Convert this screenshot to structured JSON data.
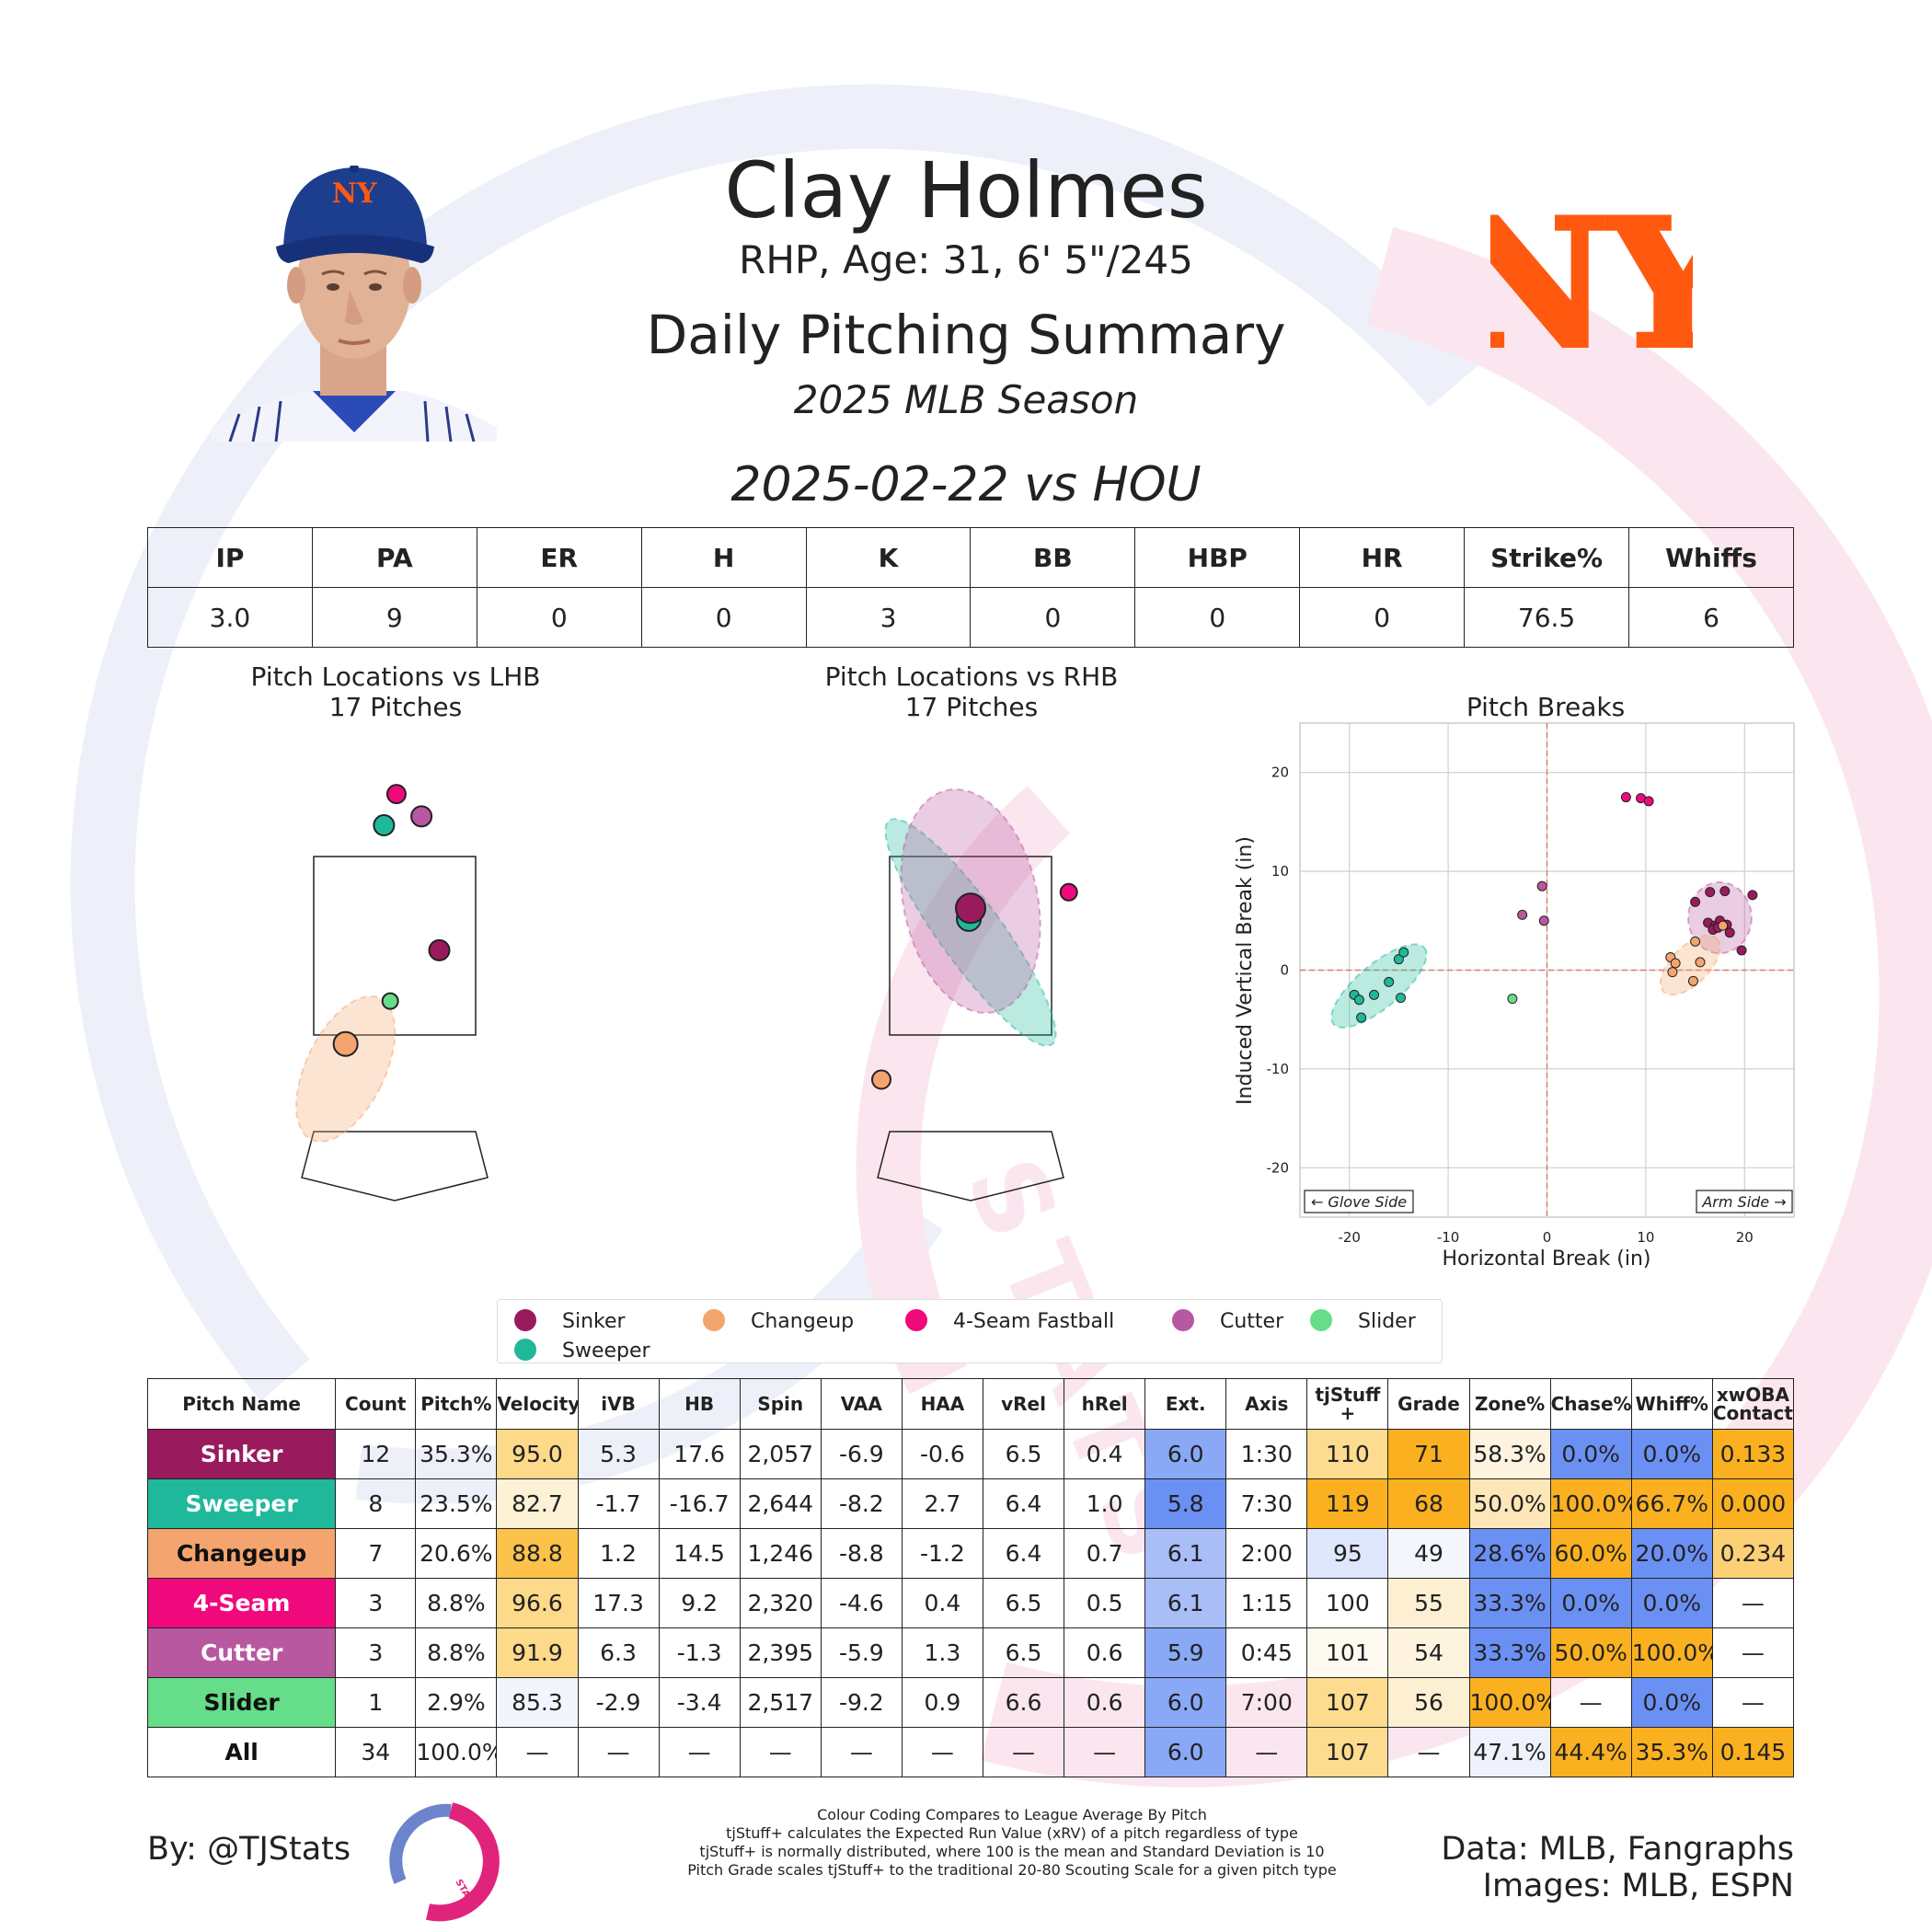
{
  "header": {
    "name": "Clay Holmes",
    "bio": "RHP, Age: 31, 6' 5\"/245",
    "title": "Daily Pitching Summary",
    "season": "2025 MLB Season",
    "game": "2025-02-22 vs HOU",
    "cap_logo_text": "NY",
    "team_logo_text": "NY",
    "watermark_text": "STATS"
  },
  "colors": {
    "Sinker": "#9a1a5e",
    "Sweeper": "#1fb89a",
    "Changeup": "#f4a46e",
    "4-Seam Fastball": "#f0097c",
    "Cutter": "#b858a0",
    "Slider": "#66dd88",
    "team_orange": "#ff5910",
    "team_blue": "#1d3d8f"
  },
  "stat_table": {
    "headers": [
      "IP",
      "PA",
      "ER",
      "H",
      "K",
      "BB",
      "HBP",
      "HR",
      "Strike%",
      "Whiffs"
    ],
    "values": [
      "3.0",
      "9",
      "0",
      "0",
      "3",
      "0",
      "0",
      "0",
      "76.5",
      "6"
    ]
  },
  "location_panels": {
    "lhb": {
      "title": "Pitch Locations vs LHB",
      "subtitle": "17 Pitches"
    },
    "rhb": {
      "title": "Pitch Locations vs RHB",
      "subtitle": "17 Pitches"
    }
  },
  "legend": [
    "Sinker",
    "Changeup",
    "4-Seam Fastball",
    "Cutter",
    "Slider",
    "Sweeper"
  ],
  "chart_data": [
    {
      "type": "scatter",
      "title": "Pitch Locations vs LHB",
      "subtitle": "17 Pitches",
      "units": "ft",
      "xlim": [
        -2,
        2
      ],
      "ylim": [
        -0.5,
        5
      ],
      "points": [
        {
          "pitch": "4-Seam Fastball",
          "x": 0.02,
          "y": 4.2,
          "size": 1
        },
        {
          "pitch": "Cutter",
          "x": 0.3,
          "y": 3.95,
          "size": 1.2
        },
        {
          "pitch": "Sweeper",
          "x": -0.12,
          "y": 3.85,
          "size": 1.2
        },
        {
          "pitch": "Sinker",
          "x": 0.5,
          "y": 2.45,
          "size": 1.2
        },
        {
          "pitch": "Slider",
          "x": -0.05,
          "y": 1.88,
          "size": 0.7
        },
        {
          "pitch": "Changeup",
          "x": -0.55,
          "y": 1.4,
          "size": 1.6
        }
      ],
      "ellipses": [
        {
          "pitch": "Changeup",
          "cx": -0.55,
          "cy": 1.12,
          "rx": 0.44,
          "ry": 0.88,
          "angle": 26
        }
      ]
    },
    {
      "type": "scatter",
      "title": "Pitch Locations vs RHB",
      "subtitle": "17 Pitches",
      "units": "ft",
      "xlim": [
        -2,
        2
      ],
      "ylim": [
        -0.5,
        5
      ],
      "points": [
        {
          "pitch": "Sweeper",
          "x": -0.02,
          "y": 2.8,
          "size": 1.6
        },
        {
          "pitch": "Sinker",
          "x": 0.0,
          "y": 2.92,
          "size": 2.2
        },
        {
          "pitch": "4-Seam Fastball",
          "x": 1.1,
          "y": 3.1,
          "size": 0.8
        },
        {
          "pitch": "Changeup",
          "x": -1.0,
          "y": 1.0,
          "size": 1
        }
      ],
      "ellipses": [
        {
          "pitch": "Sweeper",
          "cx": 0.0,
          "cy": 2.65,
          "rx": 0.35,
          "ry": 1.55,
          "angle": -36
        },
        {
          "pitch": "Cutter",
          "cx": 0.0,
          "cy": 3.0,
          "rx": 0.75,
          "ry": 1.27,
          "angle": -12
        }
      ]
    },
    {
      "type": "scatter",
      "title": "Pitch Breaks",
      "xlabel": "Horizontal Break (in)",
      "ylabel": "Induced Vertical Break (in)",
      "xlim": [
        -25,
        25
      ],
      "ylim": [
        -25,
        25
      ],
      "xticks": [
        -20,
        -10,
        0,
        10,
        20
      ],
      "yticks": [
        20,
        10,
        0,
        -10,
        -20
      ],
      "grid": true,
      "annotations": [
        "← Glove Side",
        "Arm Side →"
      ],
      "points": [
        {
          "pitch": "4-Seam Fastball",
          "x": 8.0,
          "y": 17.5
        },
        {
          "pitch": "4-Seam Fastball",
          "x": 9.5,
          "y": 17.4
        },
        {
          "pitch": "4-Seam Fastball",
          "x": 10.3,
          "y": 17.1
        },
        {
          "pitch": "Cutter",
          "x": -0.5,
          "y": 8.5
        },
        {
          "pitch": "Cutter",
          "x": -2.5,
          "y": 5.6
        },
        {
          "pitch": "Cutter",
          "x": -0.3,
          "y": 5.0
        },
        {
          "pitch": "Sinker",
          "x": 15.0,
          "y": 6.9
        },
        {
          "pitch": "Sinker",
          "x": 16.5,
          "y": 7.9
        },
        {
          "pitch": "Sinker",
          "x": 18.0,
          "y": 8.0
        },
        {
          "pitch": "Sinker",
          "x": 20.8,
          "y": 7.6
        },
        {
          "pitch": "Sinker",
          "x": 16.3,
          "y": 4.8
        },
        {
          "pitch": "Sinker",
          "x": 17.0,
          "y": 4.5
        },
        {
          "pitch": "Sinker",
          "x": 17.5,
          "y": 5.0
        },
        {
          "pitch": "Sinker",
          "x": 18.2,
          "y": 4.6
        },
        {
          "pitch": "Sinker",
          "x": 18.5,
          "y": 3.8
        },
        {
          "pitch": "Sinker",
          "x": 19.7,
          "y": 2.0
        },
        {
          "pitch": "Sinker",
          "x": 16.8,
          "y": 4.1
        },
        {
          "pitch": "Sinker",
          "x": 17.3,
          "y": 4.3
        },
        {
          "pitch": "Changeup",
          "x": 12.5,
          "y": 1.3
        },
        {
          "pitch": "Changeup",
          "x": 13.0,
          "y": 0.7
        },
        {
          "pitch": "Changeup",
          "x": 15.0,
          "y": 2.9
        },
        {
          "pitch": "Changeup",
          "x": 15.5,
          "y": 0.8
        },
        {
          "pitch": "Changeup",
          "x": 12.7,
          "y": -0.2
        },
        {
          "pitch": "Changeup",
          "x": 14.8,
          "y": -1.1
        },
        {
          "pitch": "Changeup",
          "x": 17.8,
          "y": 4.5
        },
        {
          "pitch": "Sweeper",
          "x": -19.5,
          "y": -2.5
        },
        {
          "pitch": "Sweeper",
          "x": -19.0,
          "y": -3.0
        },
        {
          "pitch": "Sweeper",
          "x": -17.5,
          "y": -2.5
        },
        {
          "pitch": "Sweeper",
          "x": -16.0,
          "y": -1.2
        },
        {
          "pitch": "Sweeper",
          "x": -15.0,
          "y": 1.1
        },
        {
          "pitch": "Sweeper",
          "x": -14.5,
          "y": 1.8
        },
        {
          "pitch": "Sweeper",
          "x": -18.8,
          "y": -4.8
        },
        {
          "pitch": "Sweeper",
          "x": -14.8,
          "y": -2.8
        },
        {
          "pitch": "Slider",
          "x": -3.5,
          "y": -2.9
        }
      ],
      "ellipses": [
        {
          "pitch": "Sweeper",
          "cx": -17.0,
          "cy": -1.6,
          "rx": 6.0,
          "ry": 2.2,
          "angle": 40
        },
        {
          "pitch": "Cutter",
          "cx": 17.5,
          "cy": 5.3,
          "rx": 3.2,
          "ry": 3.6,
          "angle": 0
        },
        {
          "pitch": "Changeup",
          "cx": 14.5,
          "cy": 0.5,
          "rx": 3.8,
          "ry": 1.9,
          "angle": 45
        }
      ]
    }
  ],
  "pitch_table": {
    "headers": [
      "Pitch Name",
      "Count",
      "Pitch%",
      "Velocity",
      "iVB",
      "HB",
      "Spin",
      "VAA",
      "HAA",
      "vRel",
      "hRel",
      "Ext.",
      "Axis",
      "tjStuff +",
      "Grade",
      "Zone%",
      "Chase%",
      "Whiff%",
      "xwOBA Contact"
    ],
    "rows": [
      {
        "name": "Sinker",
        "name_bg": "#9a1a5e",
        "name_fg": "#ffffff",
        "cells": [
          "12",
          "35.3%",
          "95.0",
          "5.3",
          "17.6",
          "2,057",
          "-6.9",
          "-0.6",
          "6.5",
          "0.4",
          "6.0",
          "1:30",
          "110",
          "71",
          "58.3%",
          "0.0%",
          "0.0%",
          "0.133"
        ],
        "bg": [
          "",
          "",
          "#fdd98a",
          "",
          "",
          "",
          "",
          "",
          "",
          "",
          "#89a8f6",
          "",
          "#fddc8f",
          "#fbb11f",
          "#fdf3df",
          "#6b90f4",
          "#6b90f4",
          "#fbb11f"
        ]
      },
      {
        "name": "Sweeper",
        "name_bg": "#1fb89a",
        "name_fg": "#ffffff",
        "cells": [
          "8",
          "23.5%",
          "82.7",
          "-1.7",
          "-16.7",
          "2,644",
          "-8.2",
          "2.7",
          "6.4",
          "1.0",
          "5.8",
          "7:30",
          "119",
          "68",
          "50.0%",
          "100.0%",
          "66.7%",
          "0.000"
        ],
        "bg": [
          "",
          "",
          "#fdf1d6",
          "",
          "",
          "",
          "",
          "",
          "",
          "",
          "#6b90f4",
          "",
          "#fbb11f",
          "#fbb11f",
          "#fde7b8",
          "#fbb11f",
          "#fbb11f",
          "#fbb11f"
        ]
      },
      {
        "name": "Changeup",
        "name_bg": "#f4a46e",
        "name_fg": "#111111",
        "cells": [
          "7",
          "20.6%",
          "88.8",
          "1.2",
          "14.5",
          "1,246",
          "-8.8",
          "-1.2",
          "6.4",
          "0.7",
          "6.1",
          "2:00",
          "95",
          "49",
          "28.6%",
          "60.0%",
          "20.0%",
          "0.234"
        ],
        "bg": [
          "",
          "",
          "#fcc24a",
          "",
          "",
          "",
          "",
          "",
          "",
          "",
          "#a9bdf6",
          "",
          "#dfe7fc",
          "#f4f6fd",
          "#6b90f4",
          "#fbb11f",
          "#6b90f4",
          "#fcd176"
        ]
      },
      {
        "name": "4-Seam",
        "name_bg": "#f0097c",
        "name_fg": "#ffffff",
        "cells": [
          "3",
          "8.8%",
          "96.6",
          "17.3",
          "9.2",
          "2,320",
          "-4.6",
          "0.4",
          "6.5",
          "0.5",
          "6.1",
          "1:15",
          "100",
          "55",
          "33.3%",
          "0.0%",
          "0.0%",
          "—"
        ],
        "bg": [
          "",
          "",
          "#fdd98a",
          "",
          "",
          "",
          "",
          "",
          "",
          "",
          "#a9bdf6",
          "",
          "",
          "#fdf0d2",
          "#6b90f4",
          "#6b90f4",
          "#6b90f4",
          ""
        ]
      },
      {
        "name": "Cutter",
        "name_bg": "#b858a0",
        "name_fg": "#ffffff",
        "cells": [
          "3",
          "8.8%",
          "91.9",
          "6.3",
          "-1.3",
          "2,395",
          "-5.9",
          "1.3",
          "6.5",
          "0.6",
          "5.9",
          "0:45",
          "101",
          "54",
          "33.3%",
          "50.0%",
          "100.0%",
          "—"
        ],
        "bg": [
          "",
          "",
          "#fdd98a",
          "",
          "",
          "",
          "",
          "",
          "",
          "",
          "#89a8f6",
          "",
          "#fefaf0",
          "#fdf3df",
          "#6b90f4",
          "#fbb11f",
          "#fbb11f",
          ""
        ]
      },
      {
        "name": "Slider",
        "name_bg": "#66dd88",
        "name_fg": "#111111",
        "cells": [
          "1",
          "2.9%",
          "85.3",
          "-2.9",
          "-3.4",
          "2,517",
          "-9.2",
          "0.9",
          "6.6",
          "0.6",
          "6.0",
          "7:00",
          "107",
          "56",
          "100.0%",
          "—",
          "0.0%",
          "—"
        ],
        "bg": [
          "",
          "",
          "#f2f5fd",
          "",
          "",
          "",
          "",
          "",
          "",
          "",
          "#89a8f6",
          "",
          "#fddc8f",
          "#fdf0d2",
          "#fbb11f",
          "",
          "#6b90f4",
          ""
        ]
      },
      {
        "name": "All",
        "name_bg": "#ffffff",
        "name_fg": "#111111",
        "cells": [
          "34",
          "100.0%",
          "—",
          "—",
          "—",
          "—",
          "—",
          "—",
          "—",
          "—",
          "6.0",
          "—",
          "107",
          "—",
          "47.1%",
          "44.4%",
          "35.3%",
          "0.145"
        ],
        "bg": [
          "",
          "",
          "",
          "",
          "",
          "",
          "",
          "",
          "",
          "",
          "#89a8f6",
          "",
          "#fddc8f",
          "",
          "#eef2fd",
          "#fbb11f",
          "#fbb11f",
          "#fbb11f"
        ]
      }
    ]
  },
  "footer": {
    "author": "By: @TJStats",
    "notes": [
      "Colour Coding Compares to League Average By Pitch",
      "tjStuff+ calculates the Expected Run Value (xRV) of a pitch regardless of type",
      "tjStuff+ is normally distributed, where 100 is the mean and Standard Deviation is 10",
      "Pitch Grade scales tjStuff+ to the traditional 20-80 Scouting Scale for a given pitch type"
    ],
    "data_source": "Data: MLB, Fangraphs",
    "image_source": "Images: MLB, ESPN",
    "logo_text": "STATS"
  }
}
